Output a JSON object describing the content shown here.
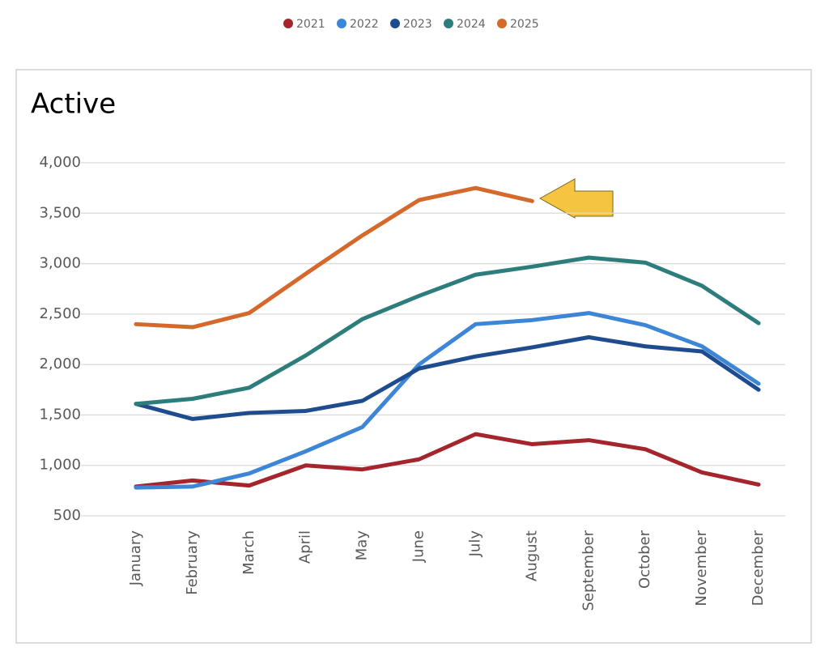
{
  "chart_data": {
    "type": "line",
    "title": "Active",
    "categories": [
      "January",
      "February",
      "March",
      "April",
      "May",
      "June",
      "July",
      "August",
      "September",
      "October",
      "November",
      "December"
    ],
    "series": [
      {
        "name": "2021",
        "color": "#a4262c",
        "values": [
          790,
          850,
          800,
          1000,
          960,
          1060,
          1310,
          1210,
          1250,
          1160,
          930,
          810
        ]
      },
      {
        "name": "2022",
        "color": "#3d85d6",
        "values": [
          780,
          790,
          920,
          1140,
          1380,
          2000,
          2400,
          2440,
          2510,
          2390,
          2180,
          1810
        ]
      },
      {
        "name": "2023",
        "color": "#1f4c8f",
        "values": [
          1610,
          1460,
          1520,
          1540,
          1640,
          1960,
          2080,
          2170,
          2270,
          2180,
          2130,
          1750
        ]
      },
      {
        "name": "2024",
        "color": "#2e7d7d",
        "values": [
          1610,
          1660,
          1770,
          2090,
          2450,
          2680,
          2890,
          2970,
          3060,
          3010,
          2780,
          2410
        ]
      },
      {
        "name": "2025",
        "color": "#d5692b",
        "values": [
          2400,
          2370,
          2510,
          2900,
          3280,
          3630,
          3750,
          3620,
          null,
          null,
          null,
          null
        ]
      }
    ],
    "ylim": [
      500,
      4000
    ],
    "yticks": [
      {
        "value": 500,
        "label": "500"
      },
      {
        "value": 1000,
        "label": "1,000"
      },
      {
        "value": 1500,
        "label": "1,500"
      },
      {
        "value": 2000,
        "label": "2,000"
      },
      {
        "value": 2500,
        "label": "2,500"
      },
      {
        "value": 3000,
        "label": "3,000"
      },
      {
        "value": 3500,
        "label": "3,500"
      },
      {
        "value": 4000,
        "label": "4,000"
      }
    ],
    "grid": true
  }
}
